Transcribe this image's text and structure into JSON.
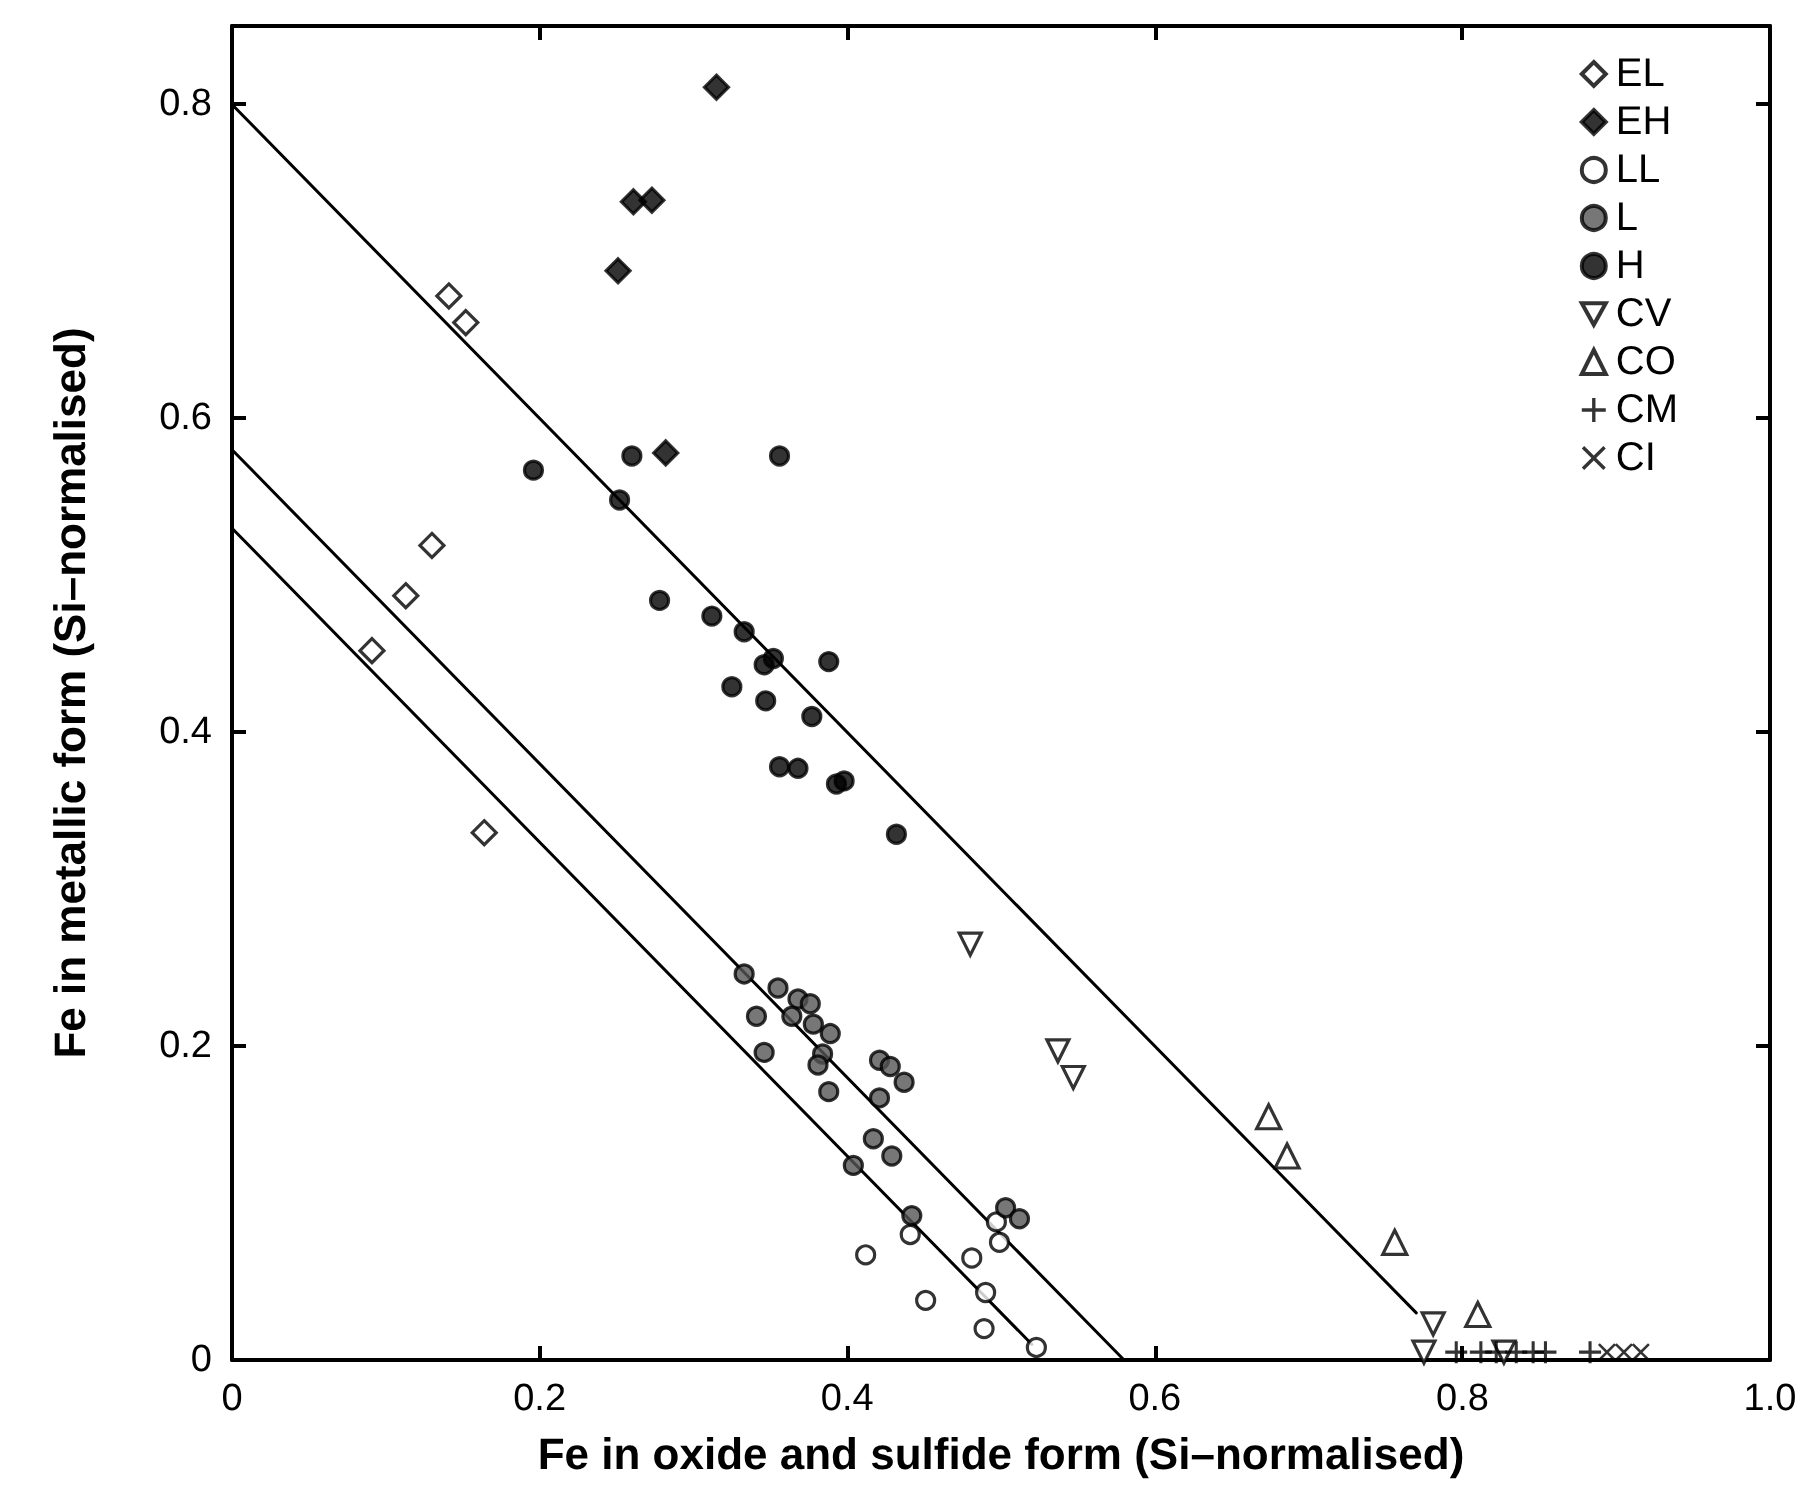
{
  "chart_data": {
    "type": "scatter",
    "xlabel": "Fe in oxide and sulfide form (Si–normalised)",
    "ylabel": "Fe in metallic form (Si–normalised)",
    "xlim": [
      0,
      1
    ],
    "ylim": [
      0,
      0.85
    ],
    "xticks": [
      0,
      0.2,
      0.4,
      0.6,
      0.8,
      {
        "value": 1,
        "label": "1.0"
      }
    ],
    "yticks": [
      0,
      0.2,
      0.4,
      0.6,
      0.8
    ],
    "grid": false,
    "legend": "top right",
    "series": [
      {
        "name": "EL",
        "color": "#ffffff",
        "marker": "diamond",
        "x": [
          0.141,
          0.152,
          0.13,
          0.113,
          0.091,
          0.164
        ],
        "values": [
          0.678,
          0.661,
          0.519,
          0.487,
          0.452,
          0.336
        ]
      },
      {
        "name": "EH",
        "color": "#000000",
        "marker": "diamond",
        "x": [
          0.315,
          0.261,
          0.273,
          0.251,
          0.282
        ],
        "values": [
          0.811,
          0.738,
          0.739,
          0.694,
          0.578
        ]
      },
      {
        "name": "LL",
        "color": "#ffffff",
        "marker": "circle",
        "x": [
          0.441,
          0.412,
          0.497,
          0.499,
          0.481,
          0.451,
          0.49,
          0.489,
          0.523
        ],
        "values": [
          0.08,
          0.067,
          0.088,
          0.075,
          0.065,
          0.038,
          0.043,
          0.02,
          0.008
        ]
      },
      {
        "name": "L",
        "color": "#555555",
        "marker": "circle",
        "x": [
          0.333,
          0.355,
          0.368,
          0.376,
          0.341,
          0.364,
          0.378,
          0.389,
          0.346,
          0.384,
          0.381,
          0.388,
          0.421,
          0.428,
          0.437,
          0.421,
          0.417,
          0.429,
          0.404,
          0.442,
          0.503,
          0.512
        ],
        "values": [
          0.246,
          0.237,
          0.23,
          0.227,
          0.219,
          0.219,
          0.214,
          0.208,
          0.196,
          0.195,
          0.188,
          0.171,
          0.191,
          0.187,
          0.177,
          0.167,
          0.141,
          0.13,
          0.124,
          0.092,
          0.097,
          0.09
        ]
      },
      {
        "name": "H",
        "color": "#000000",
        "marker": "circle",
        "x": [
          0.196,
          0.26,
          0.356,
          0.252,
          0.278,
          0.312,
          0.333,
          0.346,
          0.352,
          0.388,
          0.325,
          0.347,
          0.377,
          0.356,
          0.368,
          0.393,
          0.398,
          0.432
        ],
        "values": [
          0.567,
          0.576,
          0.576,
          0.548,
          0.484,
          0.474,
          0.464,
          0.443,
          0.447,
          0.445,
          0.429,
          0.42,
          0.41,
          0.378,
          0.377,
          0.367,
          0.369,
          0.335
        ]
      },
      {
        "name": "CV",
        "color": "#ffffff",
        "marker": "triangle-down",
        "x": [
          0.48,
          0.537,
          0.547,
          0.781,
          0.775,
          0.827
        ],
        "values": [
          0.265,
          0.197,
          0.18,
          0.023,
          0.005,
          0.005
        ]
      },
      {
        "name": "CO",
        "color": "#ffffff",
        "marker": "triangle",
        "x": [
          0.674,
          0.686,
          0.756,
          0.81
        ],
        "values": [
          0.155,
          0.13,
          0.075,
          0.029
        ]
      },
      {
        "name": "CM",
        "color": "#000000",
        "marker": "cross",
        "x": [
          0.796,
          0.812,
          0.822,
          0.835,
          0.846,
          0.854,
          0.883
        ],
        "values": [
          0.005,
          0.005,
          0.005,
          0.005,
          0.005,
          0.005,
          0.005
        ]
      },
      {
        "name": "CI",
        "color": "#000000",
        "marker": "x",
        "x": [
          0.894,
          0.905,
          0.916
        ],
        "values": [
          0.005,
          0.005,
          0.005
        ]
      },
      {
        "type": "line",
        "color": "#000000",
        "marker": "none",
        "x": [
          0,
          0.77
        ],
        "values": [
          0.8,
          0.03
        ]
      },
      {
        "type": "line",
        "color": "#000000",
        "marker": "none",
        "x": [
          0,
          0.58
        ],
        "values": [
          0.58,
          0
        ]
      },
      {
        "type": "line",
        "color": "#000000",
        "marker": "none",
        "x": [
          0,
          0.52
        ],
        "values": [
          0.53,
          0.01
        ]
      }
    ]
  }
}
